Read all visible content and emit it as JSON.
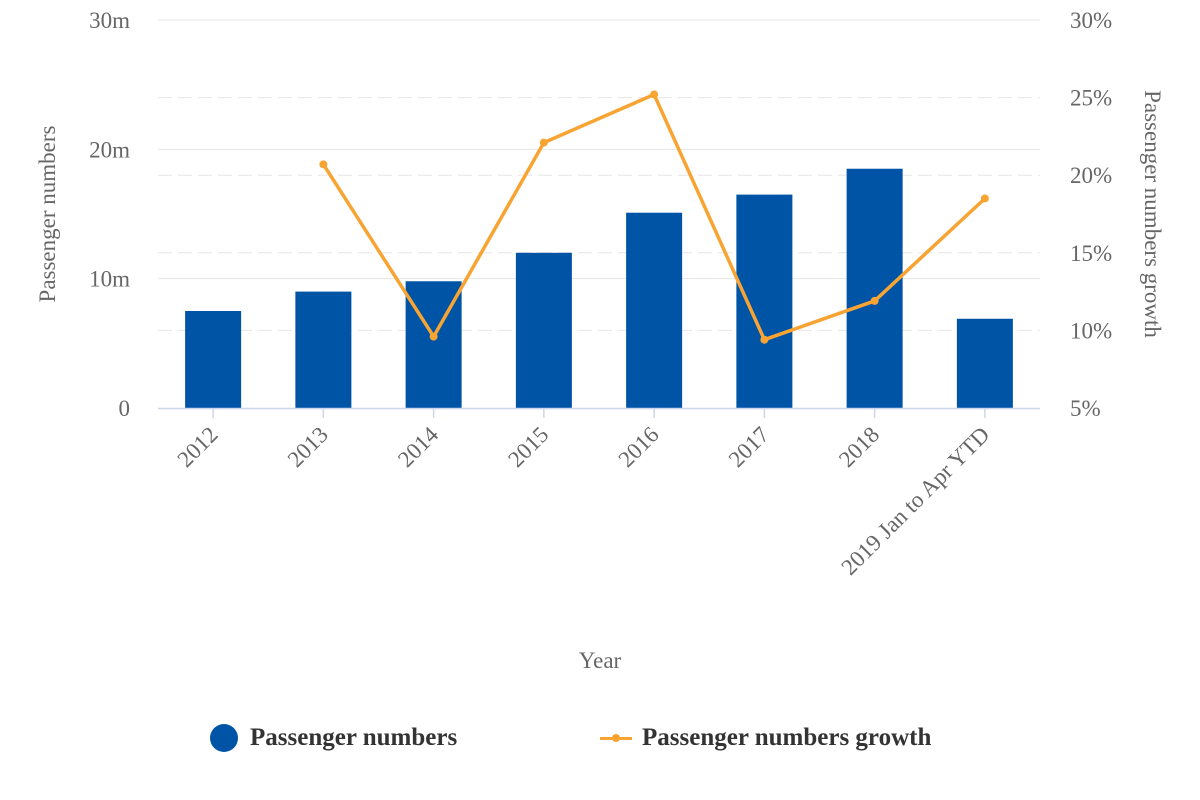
{
  "colors": {
    "bars": "#0054a6",
    "line": "#f7a433",
    "grid": "#d9d9d9",
    "axis": "#ccd6eb",
    "text": "#666666",
    "legend_text": "#333333"
  },
  "legend": {
    "bars_label": "Passenger numbers",
    "line_label": "Passenger numbers growth"
  },
  "chart_data": {
    "type": "bar",
    "categories": [
      "2012",
      "2013",
      "2014",
      "2015",
      "2016",
      "2017",
      "2018",
      "2019 Jan to Apr YTD"
    ],
    "xlabel": "Year",
    "series": [
      {
        "name": "Passenger numbers",
        "type": "bar",
        "axis": "left",
        "values": [
          7.5,
          9.0,
          9.8,
          12.0,
          15.1,
          16.5,
          18.5,
          6.9
        ]
      },
      {
        "name": "Passenger numbers growth",
        "type": "line",
        "axis": "right",
        "values": [
          null,
          20.7,
          9.6,
          22.1,
          25.2,
          9.4,
          11.9,
          18.5
        ]
      }
    ],
    "y_left": {
      "label": "Passenger numbers",
      "min": 0,
      "max": 30,
      "ticks": [
        0,
        10,
        20,
        30
      ],
      "tick_labels": [
        "0",
        "10m",
        "20m",
        "30m"
      ]
    },
    "y_right": {
      "label": "Passenger numbers growth",
      "min": 5,
      "max": 30,
      "ticks": [
        5,
        10,
        15,
        20,
        25,
        30
      ],
      "tick_labels": [
        "5%",
        "10%",
        "15%",
        "20%",
        "25%",
        "30%"
      ]
    },
    "grid": true,
    "legend_position": "bottom"
  }
}
